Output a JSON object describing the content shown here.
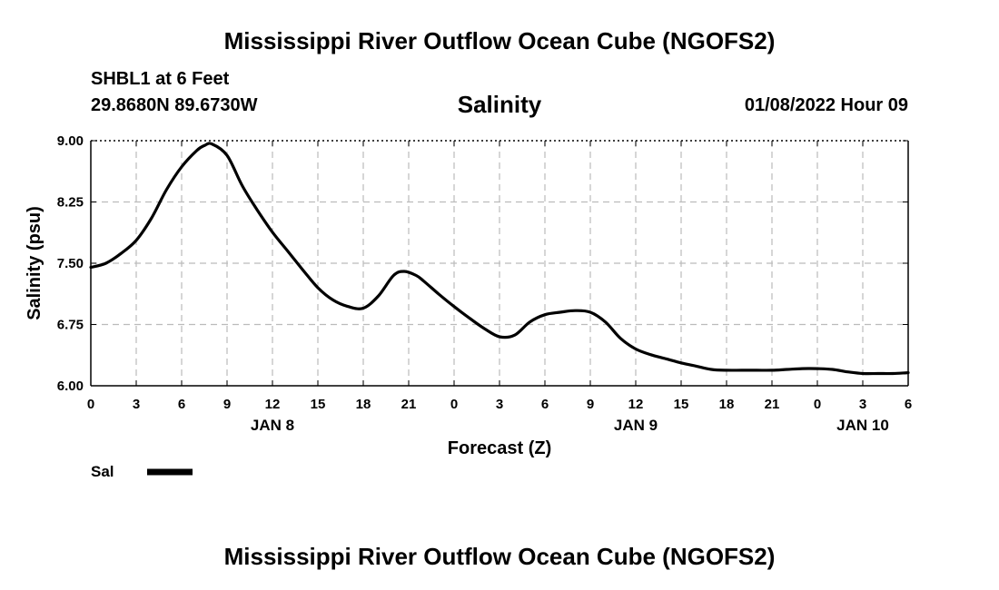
{
  "header": {
    "title": "Mississippi River Outflow Ocean Cube (NGOFS2)",
    "station": "SHBL1 at 6 Feet",
    "coordinates": "29.8680N  89.6730W",
    "timestamp": "01/08/2022 Hour 09"
  },
  "footer": {
    "title": "Mississippi River Outflow Ocean Cube (NGOFS2)"
  },
  "colors": {
    "line": "#000000",
    "grid": "#bbbbbb",
    "background": "#ffffff"
  },
  "chart_data": {
    "type": "line",
    "title": "Salinity",
    "xlabel": "Forecast (Z)",
    "ylabel": "Salinity (psu)",
    "xlim": [
      0,
      54
    ],
    "ylim": [
      6.0,
      9.0
    ],
    "grid": true,
    "y_ticks": [
      {
        "value": 6.0,
        "label": "6.00"
      },
      {
        "value": 6.75,
        "label": "6.75"
      },
      {
        "value": 7.5,
        "label": "7.50"
      },
      {
        "value": 8.25,
        "label": "8.25"
      },
      {
        "value": 9.0,
        "label": "9.00"
      }
    ],
    "x_ticks": [
      {
        "value": 0,
        "label": "0"
      },
      {
        "value": 3,
        "label": "3"
      },
      {
        "value": 6,
        "label": "6"
      },
      {
        "value": 9,
        "label": "9"
      },
      {
        "value": 12,
        "label": "12"
      },
      {
        "value": 15,
        "label": "15"
      },
      {
        "value": 18,
        "label": "18"
      },
      {
        "value": 21,
        "label": "21"
      },
      {
        "value": 24,
        "label": "0"
      },
      {
        "value": 27,
        "label": "3"
      },
      {
        "value": 30,
        "label": "6"
      },
      {
        "value": 33,
        "label": "9"
      },
      {
        "value": 36,
        "label": "12"
      },
      {
        "value": 39,
        "label": "15"
      },
      {
        "value": 42,
        "label": "18"
      },
      {
        "value": 45,
        "label": "21"
      },
      {
        "value": 48,
        "label": "0"
      },
      {
        "value": 51,
        "label": "3"
      },
      {
        "value": 54,
        "label": "6"
      }
    ],
    "day_labels": [
      {
        "value": 12,
        "label": "JAN 8"
      },
      {
        "value": 36,
        "label": "JAN 9"
      },
      {
        "value": 51,
        "label": "JAN 10"
      }
    ],
    "legend": {
      "label": "Sal",
      "position": "bottom-left"
    },
    "series": [
      {
        "name": "Sal",
        "x": [
          0,
          1,
          2,
          3,
          4,
          5,
          6,
          7,
          7.5,
          8,
          9,
          10,
          11,
          12,
          13,
          14,
          15,
          16,
          17,
          18,
          19,
          20,
          20.7,
          21.5,
          22,
          23,
          24,
          25,
          26,
          27,
          28,
          29,
          30,
          31,
          32,
          33,
          34,
          35,
          36,
          37,
          38,
          39,
          40,
          41,
          42,
          43,
          44,
          45,
          46,
          47,
          48,
          49,
          50,
          51,
          52,
          53,
          54
        ],
        "values": [
          7.45,
          7.5,
          7.62,
          7.78,
          8.05,
          8.4,
          8.68,
          8.88,
          8.94,
          8.96,
          8.82,
          8.45,
          8.15,
          7.88,
          7.65,
          7.42,
          7.2,
          7.05,
          6.97,
          6.95,
          7.1,
          7.35,
          7.4,
          7.35,
          7.28,
          7.12,
          6.97,
          6.83,
          6.7,
          6.6,
          6.62,
          6.78,
          6.87,
          6.9,
          6.92,
          6.9,
          6.78,
          6.58,
          6.45,
          6.38,
          6.33,
          6.28,
          6.24,
          6.2,
          6.19,
          6.19,
          6.19,
          6.19,
          6.2,
          6.21,
          6.21,
          6.2,
          6.17,
          6.15,
          6.15,
          6.15,
          6.16
        ]
      }
    ]
  }
}
